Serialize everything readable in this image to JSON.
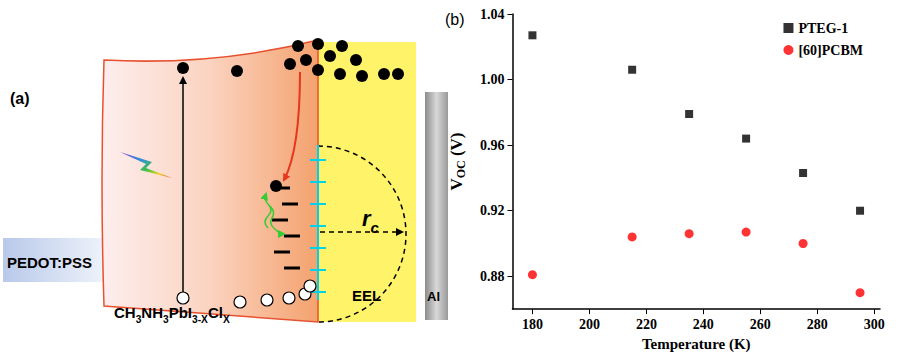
{
  "diagram": {
    "panel_label": "(a)",
    "layers": [
      {
        "label": [
          {
            "text": "PEDOT:PSS"
          }
        ]
      },
      {
        "label": [
          {
            "text": "CH"
          },
          {
            "text": "3",
            "sub": true
          },
          {
            "text": "NH"
          },
          {
            "text": "3",
            "sub": true
          },
          {
            "text": "PbI"
          },
          {
            "text": "3-X",
            "sub": true
          },
          {
            "text": "Cl"
          },
          {
            "text": "X",
            "sub": true
          }
        ]
      },
      {
        "label": [
          {
            "text": "EEL"
          }
        ]
      },
      {
        "label": [
          {
            "text": "Al"
          }
        ]
      }
    ],
    "radius_label": [
      {
        "text": "r"
      },
      {
        "text": "c",
        "sub": true
      }
    ]
  },
  "chart_data": {
    "type": "scatter",
    "title": "(b)",
    "x_label": "Temperature (K)",
    "y_label": [
      {
        "text": "V"
      },
      {
        "text": "OC",
        "sub": true
      },
      {
        "text": " (V)"
      }
    ],
    "series": [
      {
        "name": "PTEG-1",
        "color": "#000000",
        "marker": "square",
        "x": [
          180,
          215,
          235,
          255,
          275,
          295
        ],
        "values": [
          1.027,
          1.006,
          0.979,
          0.964,
          0.943,
          0.92
        ]
      },
      {
        "name": "[60]PCBM",
        "color": "#ff0000",
        "marker": "circle",
        "x": [
          180,
          215,
          235,
          255,
          275,
          295
        ],
        "values": [
          0.881,
          0.904,
          0.906,
          0.907,
          0.9,
          0.87
        ]
      }
    ],
    "xlim": [
      173,
      302
    ],
    "xticks": [
      180,
      200,
      220,
      240,
      260,
      280,
      300
    ],
    "ylim": [
      0.86,
      1.04
    ],
    "yticks": [
      0.88,
      0.92,
      0.96,
      {
        "value": 1,
        "label": "1.00"
      },
      1.04
    ],
    "grid": false,
    "legend": "upper right"
  }
}
